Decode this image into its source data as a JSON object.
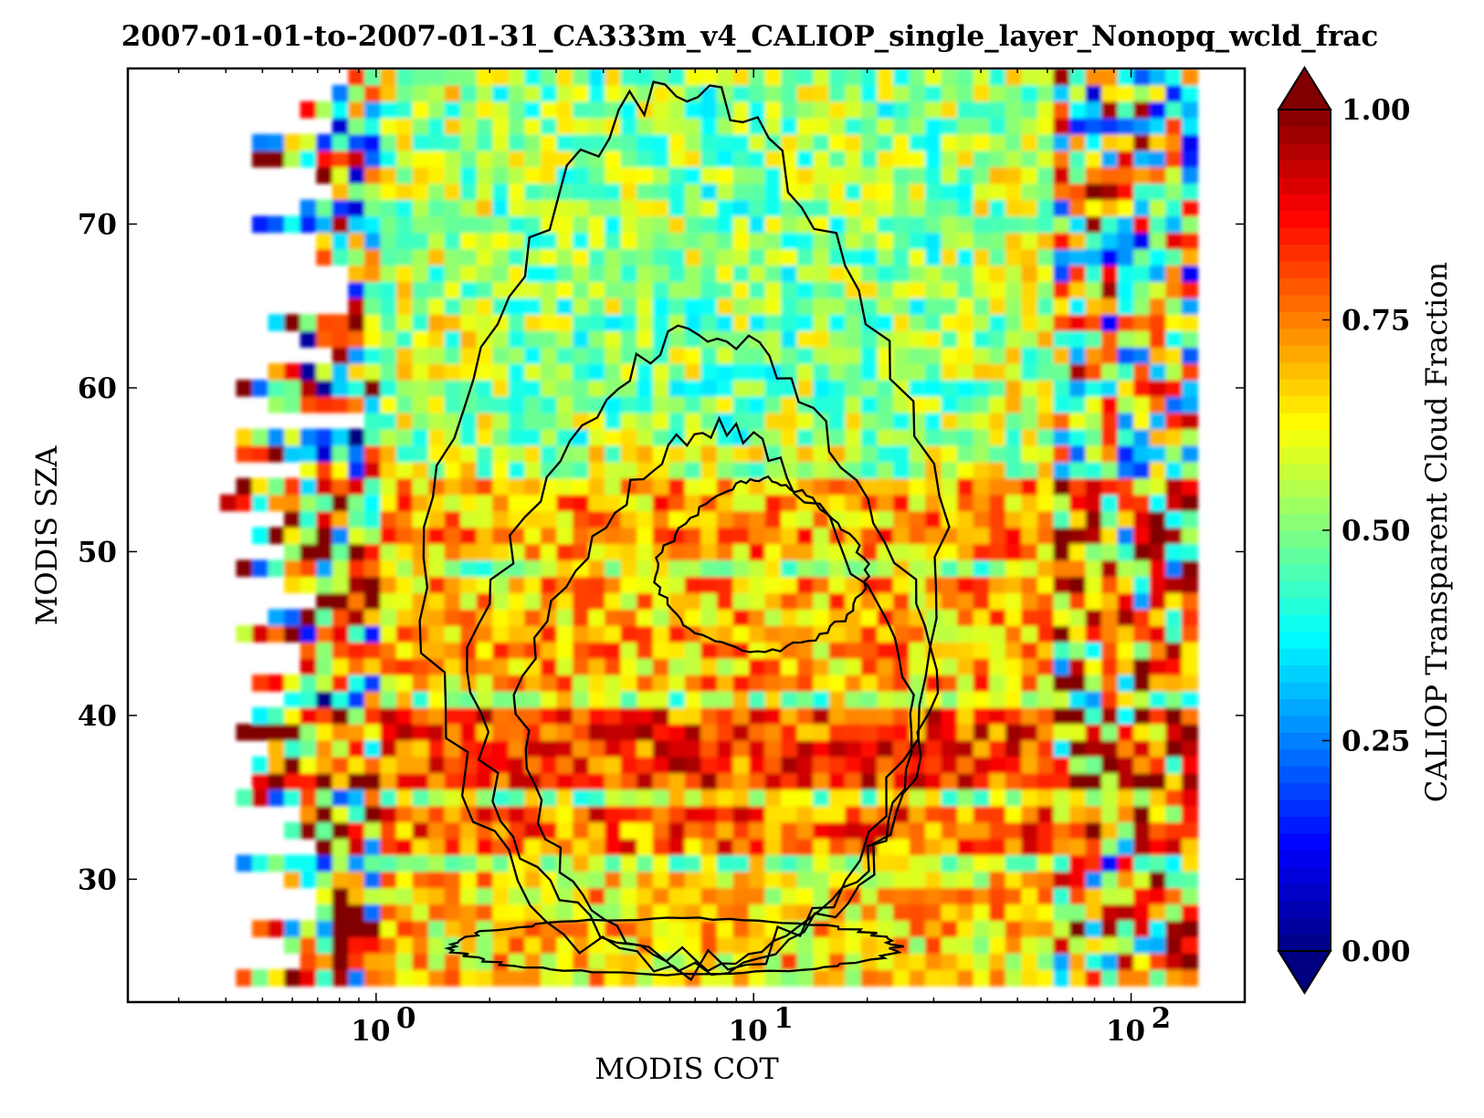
{
  "chart_data": {
    "type": "heatmap",
    "title": "2007-01-01-to-2007-01-31_CA333m_v4_CALIOP_single_layer_Nonopq_wcld_frac",
    "xlabel": "MODIS COT",
    "ylabel": "MODIS SZA",
    "x_scale": "log",
    "xlim": [
      0.22,
      200
    ],
    "ylim": [
      22.5,
      79.5
    ],
    "x_ticks": [
      {
        "value": 1,
        "base": "10",
        "exp": "0"
      },
      {
        "value": 10,
        "base": "10",
        "exp": "1"
      },
      {
        "value": 100,
        "base": "10",
        "exp": "2"
      }
    ],
    "y_ticks": [
      {
        "value": 30,
        "label": "30"
      },
      {
        "value": 40,
        "label": "40"
      },
      {
        "value": 50,
        "label": "50"
      },
      {
        "value": 60,
        "label": "60"
      },
      {
        "value": 70,
        "label": "70"
      }
    ],
    "colorbar": {
      "label": "CALIOP Transparent Cloud Fraction",
      "colormap": "jet",
      "range": [
        0.0,
        1.0
      ],
      "extend": "both",
      "ticks": [
        {
          "value": 0.0,
          "label": "0.00"
        },
        {
          "value": 0.25,
          "label": "0.25"
        },
        {
          "value": 0.5,
          "label": "0.50"
        },
        {
          "value": 0.75,
          "label": "0.75"
        },
        {
          "value": 1.0,
          "label": "1.00"
        }
      ]
    },
    "data_extent": {
      "cot": [
        0.35,
        150
      ],
      "sza": [
        23.5,
        79.5
      ]
    },
    "field_description": {
      "bands": [
        {
          "sza": [
            24,
            30
          ],
          "level": 0.66
        },
        {
          "sza": [
            32,
            34
          ],
          "level": 0.78
        },
        {
          "sza": [
            36,
            40
          ],
          "level": 0.82
        },
        {
          "sza": [
            42,
            48
          ],
          "level": 0.7
        },
        {
          "sza": [
            50,
            54
          ],
          "level": 0.72
        },
        {
          "sza": [
            56,
            79
          ],
          "level": 0.55
        }
      ]
    },
    "contours": [
      {
        "level": 1,
        "center": [
          10,
          50
        ],
        "cot_range": [
          1.3,
          32
        ],
        "sza_range": [
          24.5,
          78.5
        ]
      },
      {
        "level": 2,
        "center": [
          10,
          45
        ],
        "cot_range": [
          1.8,
          30
        ],
        "sza_range": [
          24.8,
          63.5
        ]
      },
      {
        "level": 3,
        "center": [
          10,
          45
        ],
        "cot_range": [
          2.4,
          26
        ],
        "sza_range": [
          25.0,
          57.5
        ]
      },
      {
        "level": 4,
        "center": [
          12,
          50
        ],
        "cot_range": [
          5.5,
          20
        ],
        "sza_range": [
          44.0,
          54.5
        ]
      },
      {
        "level": 5,
        "center": [
          5.2,
          25.8
        ],
        "cot_range": [
          1.6,
          24
        ],
        "sza_range": [
          24.2,
          27.6
        ]
      }
    ]
  }
}
